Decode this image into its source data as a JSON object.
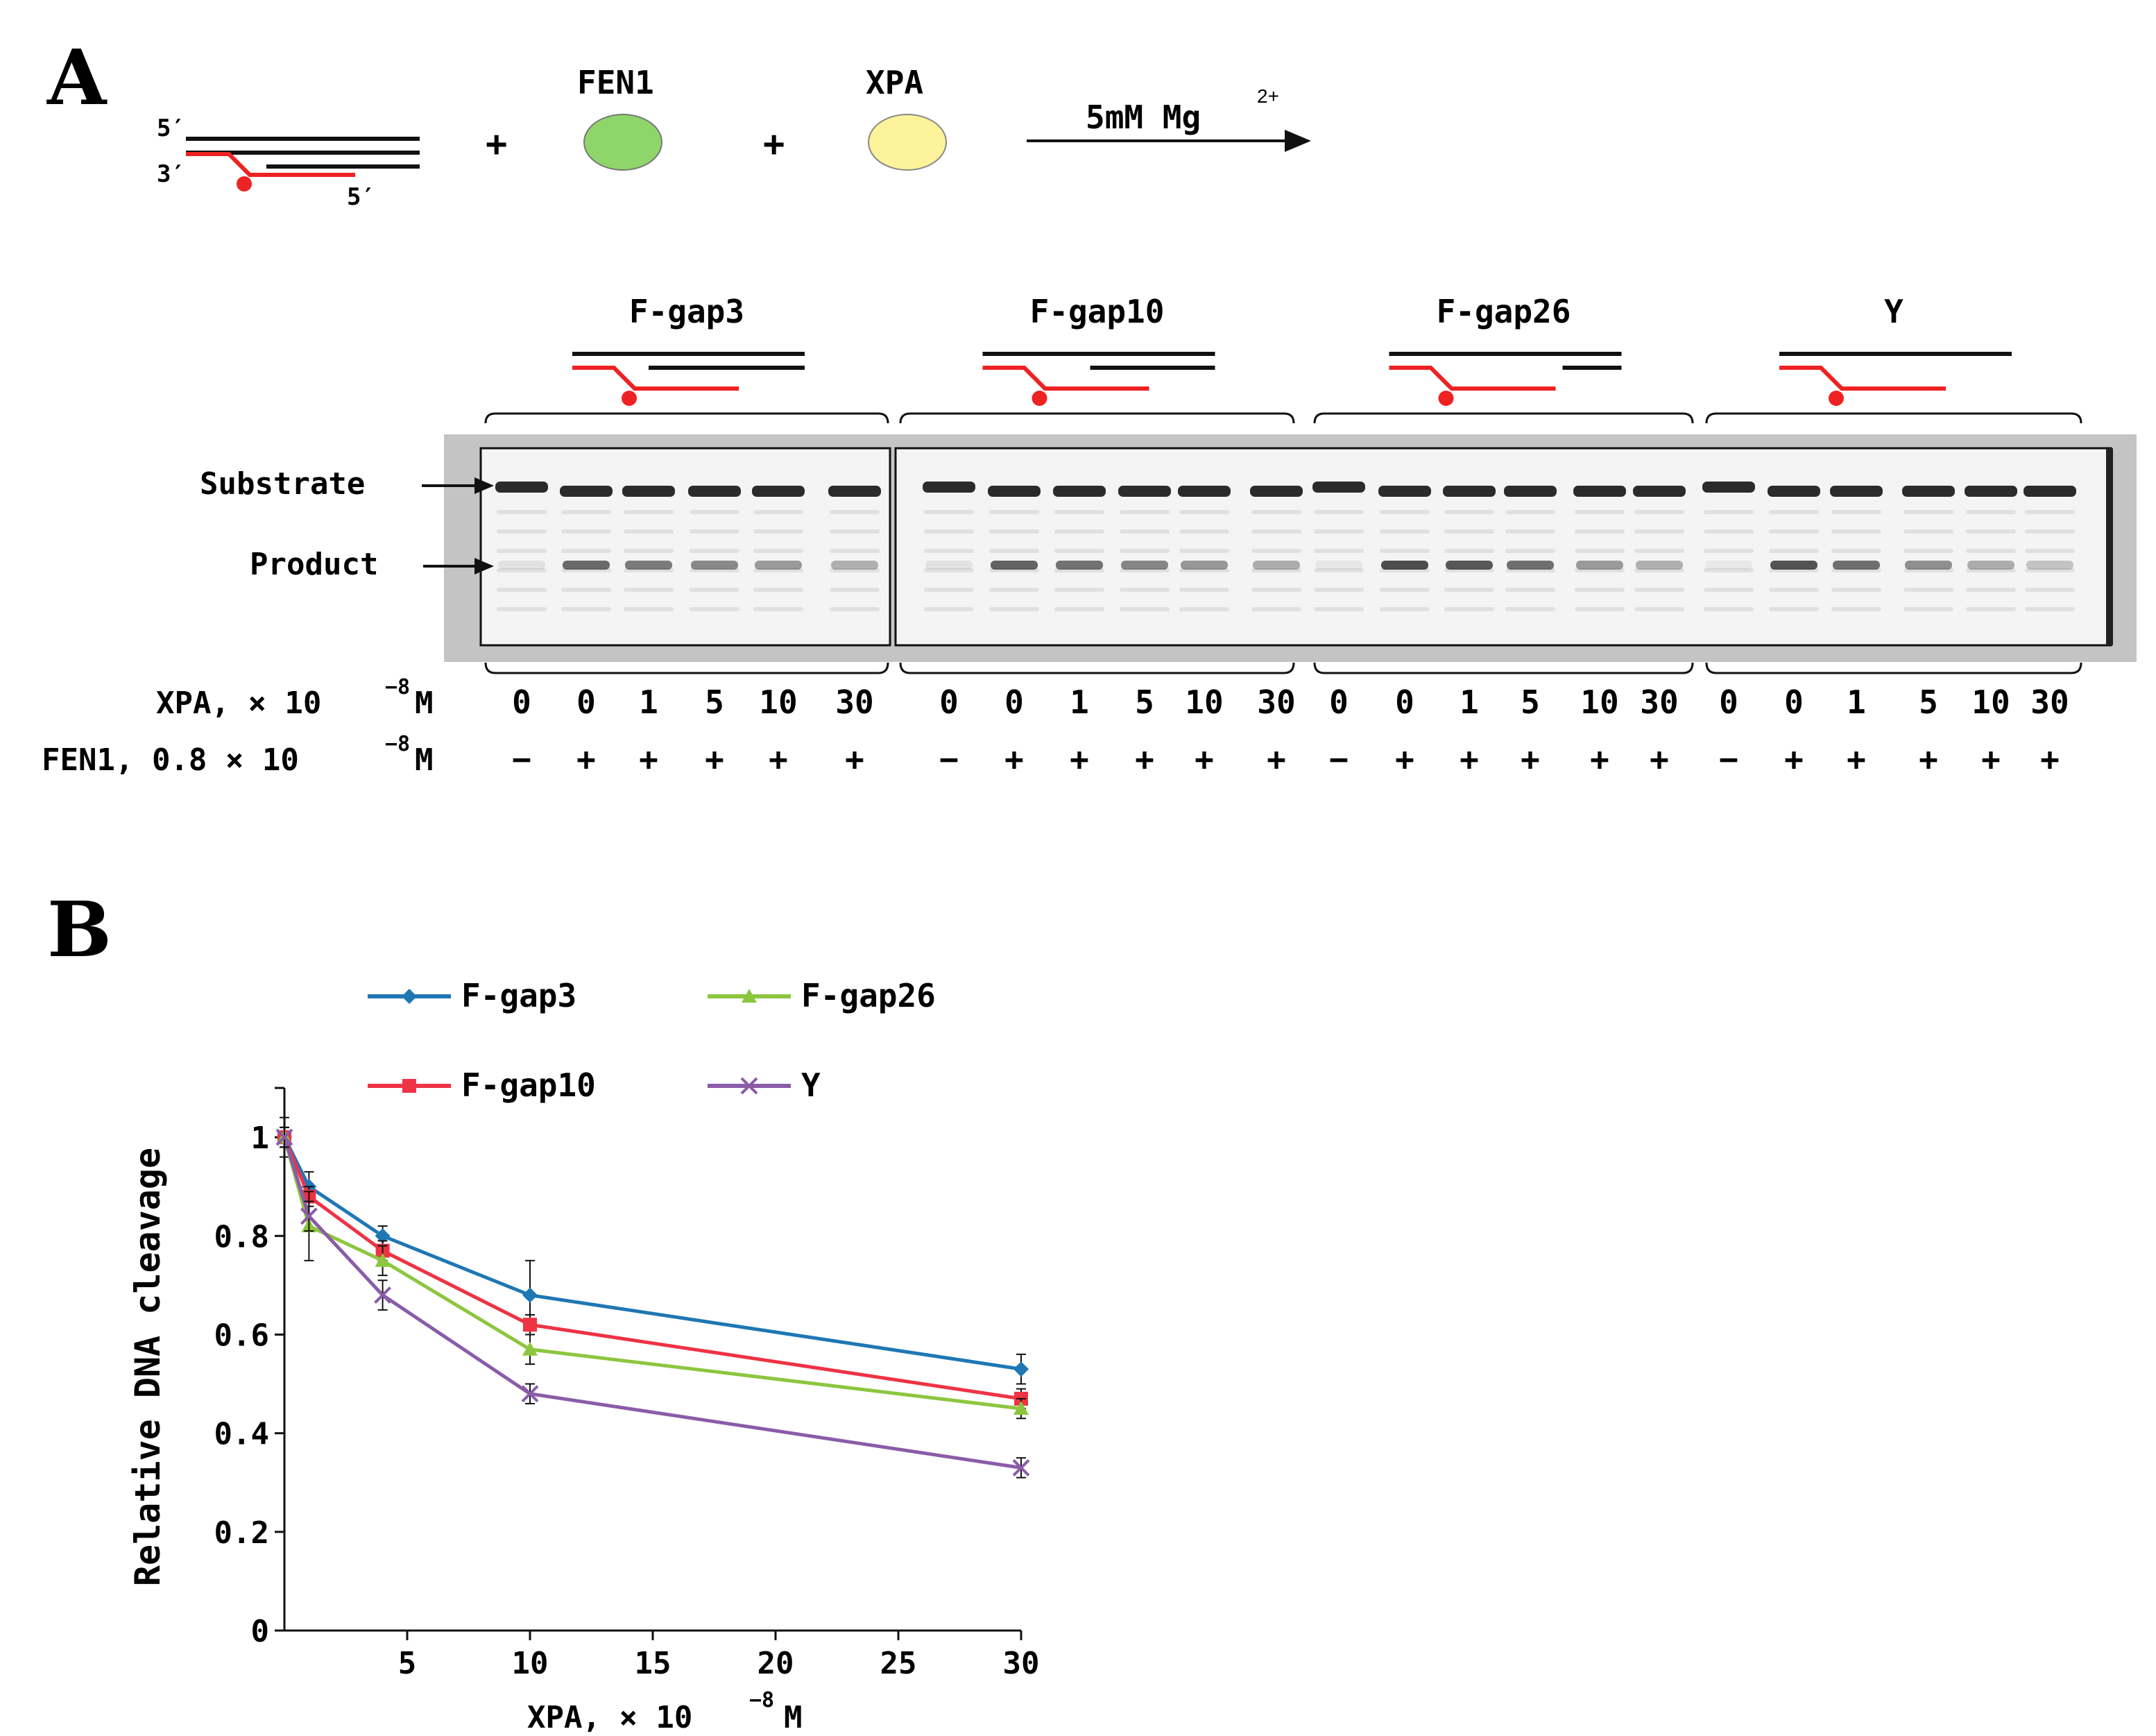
{
  "panel_a": {
    "label": "A",
    "scheme": {
      "five_prime_top": "5′",
      "three_prime": "3′",
      "five_prime_bottom": "5′",
      "plus1": "+",
      "plus2": "+",
      "fen1_label": "FEN1",
      "xpa_label": "XPA",
      "fen1_color": "#8fd66a",
      "xpa_color": "#fdf39a",
      "reaction_condition": "5mM Mg",
      "reaction_superscript": "2+"
    },
    "substrate_colors": {
      "dna_strand": "#111111",
      "labeled_strand": "#ee2222"
    },
    "gel_groups": [
      {
        "name": "F-gap3"
      },
      {
        "name": "F-gap10"
      },
      {
        "name": "F-gap26"
      },
      {
        "name": "Y"
      }
    ],
    "band_labels": {
      "substrate": "Substrate",
      "product": "Product"
    },
    "row_labels": {
      "xpa": "XPA, × 10",
      "xpa_exp": "−8",
      "xpa_unit": "M",
      "fen1": "FEN1, 0.8 × 10",
      "fen1_exp": "−8",
      "fen1_unit": "M"
    },
    "lanes": {
      "xpa": [
        "0",
        "0",
        "1",
        "5",
        "10",
        "30",
        "0",
        "0",
        "1",
        "5",
        "10",
        "30",
        "0",
        "0",
        "1",
        "5",
        "10",
        "30",
        "0",
        "0",
        "1",
        "5",
        "10",
        "30"
      ],
      "fen1": [
        "−",
        "+",
        "+",
        "+",
        "+",
        "+",
        "−",
        "+",
        "+",
        "+",
        "+",
        "+",
        "−",
        "+",
        "+",
        "+",
        "+",
        "+",
        "−",
        "+",
        "+",
        "+",
        "+",
        "+"
      ],
      "product_intensity": [
        0.08,
        0.62,
        0.55,
        0.48,
        0.4,
        0.3,
        0.08,
        0.65,
        0.58,
        0.5,
        0.42,
        0.32,
        0.06,
        0.75,
        0.7,
        0.6,
        0.4,
        0.3,
        0.05,
        0.72,
        0.6,
        0.45,
        0.32,
        0.22
      ]
    }
  },
  "panel_b": {
    "label": "B",
    "chart_data": {
      "type": "line",
      "xlabel": "XPA, × 10",
      "xlabel_exp": "−8",
      "xlabel_unit": "M",
      "ylabel": "Relative DNA cleavage",
      "xlim": [
        0,
        30
      ],
      "ylim": [
        0,
        1.1
      ],
      "xticks": [
        "5",
        "10",
        "15",
        "20",
        "25",
        "30"
      ],
      "xtick_values": [
        5,
        10,
        15,
        20,
        25,
        30
      ],
      "yticks": [
        "0",
        "0.2",
        "0.4",
        "0.6",
        "0.8",
        "1"
      ],
      "ytick_values": [
        0,
        0.2,
        0.4,
        0.6,
        0.8,
        1
      ],
      "x": [
        0,
        1,
        4,
        10,
        30
      ],
      "series": [
        {
          "name": "F-gap3",
          "color": "#1f77b4",
          "marker": "diamond",
          "values": [
            1.0,
            0.9,
            0.8,
            0.68,
            0.53
          ],
          "errors": [
            0.04,
            0.03,
            0.02,
            0.07,
            0.03
          ]
        },
        {
          "name": "F-gap10",
          "color": "#ee3344",
          "marker": "square",
          "values": [
            1.0,
            0.88,
            0.77,
            0.62,
            0.47
          ],
          "errors": [
            0.02,
            0.02,
            0.02,
            0.02,
            0.02
          ]
        },
        {
          "name": "F-gap26",
          "color": "#8cc63f",
          "marker": "triangle",
          "values": [
            1.0,
            0.82,
            0.75,
            0.57,
            0.45
          ],
          "errors": [
            0.02,
            0.07,
            0.03,
            0.03,
            0.02
          ]
        },
        {
          "name": "Y",
          "color": "#8a5ca8",
          "marker": "x",
          "values": [
            1.0,
            0.84,
            0.68,
            0.48,
            0.33
          ],
          "errors": [
            0.02,
            0.03,
            0.03,
            0.02,
            0.02
          ]
        }
      ]
    }
  }
}
